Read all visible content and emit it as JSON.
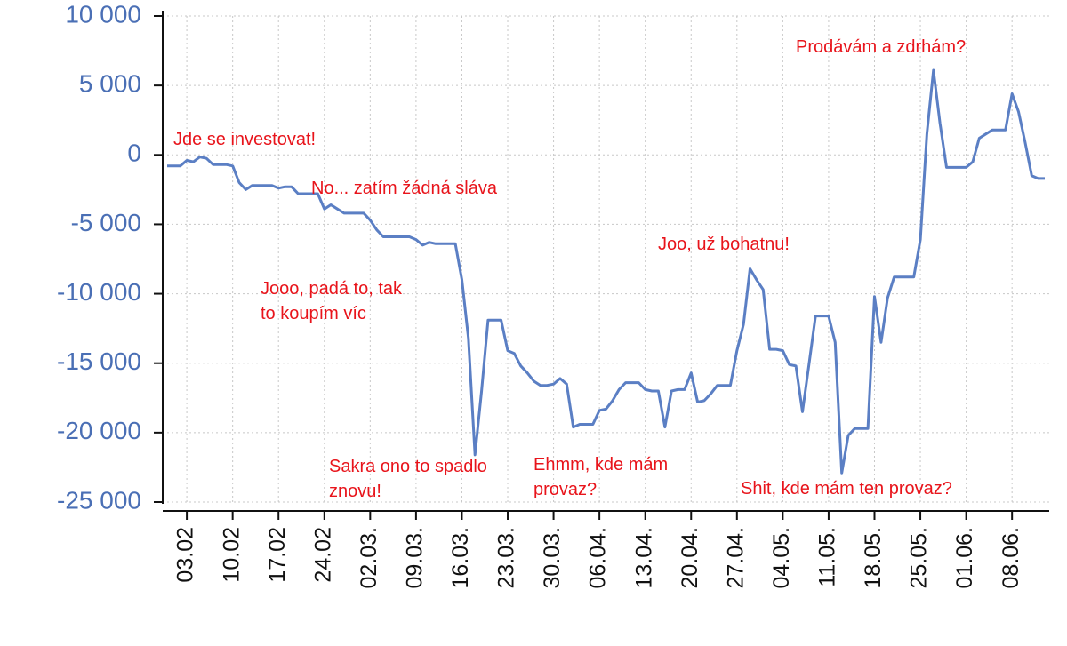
{
  "chart_data": {
    "type": "line",
    "x": [
      "31.01.",
      "01.02.",
      "02.02.",
      "03.02.",
      "04.02.",
      "05.02.",
      "06.02.",
      "07.02.",
      "08.02.",
      "09.02.",
      "10.02.",
      "11.02.",
      "12.02.",
      "13.02.",
      "14.02.",
      "15.02.",
      "16.02.",
      "17.02.",
      "18.02.",
      "19.02.",
      "20.02.",
      "21.02.",
      "22.02.",
      "23.02.",
      "24.02.",
      "25.02.",
      "26.02.",
      "27.02.",
      "28.02.",
      "29.02.",
      "01.03.",
      "02.03.",
      "03.03.",
      "04.03.",
      "05.03.",
      "06.03.",
      "07.03.",
      "08.03.",
      "09.03.",
      "10.03.",
      "11.03.",
      "12.03.",
      "13.03.",
      "14.03.",
      "15.03.",
      "16.03.",
      "17.03.",
      "18.03.",
      "19.03.",
      "20.03.",
      "21.03.",
      "22.03.",
      "23.03.",
      "24.03.",
      "25.03.",
      "26.03.",
      "27.03.",
      "28.03.",
      "29.03.",
      "30.03.",
      "31.03.",
      "01.04.",
      "02.04.",
      "03.04.",
      "04.04.",
      "05.04.",
      "06.04.",
      "07.04.",
      "08.04.",
      "09.04.",
      "10.04.",
      "11.04.",
      "12.04.",
      "13.04.",
      "14.04.",
      "15.04.",
      "16.04.",
      "17.04.",
      "18.04.",
      "19.04.",
      "20.04.",
      "21.04.",
      "22.04.",
      "23.04.",
      "24.04.",
      "25.04.",
      "26.04.",
      "27.04.",
      "28.04.",
      "29.04.",
      "30.04.",
      "01.05.",
      "02.05.",
      "03.05.",
      "04.05.",
      "05.05.",
      "06.05.",
      "07.05.",
      "08.05.",
      "09.05.",
      "10.05.",
      "11.05.",
      "12.05.",
      "13.05.",
      "14.05.",
      "15.05.",
      "16.05.",
      "17.05.",
      "18.05.",
      "19.05.",
      "20.05.",
      "21.05.",
      "22.05.",
      "23.05.",
      "24.05.",
      "25.05.",
      "26.05.",
      "27.05.",
      "28.05.",
      "29.05.",
      "30.05.",
      "31.05.",
      "01.06.",
      "02.06.",
      "03.06.",
      "04.06.",
      "05.06.",
      "06.06.",
      "07.06.",
      "08.06.",
      "09.06.",
      "10.06.",
      "11.06.",
      "12.06.",
      "13.06."
    ],
    "series": [
      {
        "color": "#5b7fc4",
        "values": [
          -800,
          -800,
          -800,
          -400,
          -500,
          -150,
          -250,
          -700,
          -700,
          -700,
          -800,
          -2000,
          -2500,
          -2200,
          -2200,
          -2200,
          -2200,
          -2400,
          -2300,
          -2300,
          -2800,
          -2800,
          -2800,
          -2800,
          -3900,
          -3600,
          -3900,
          -4200,
          -4200,
          -4200,
          -4200,
          -4700,
          -5400,
          -5900,
          -5900,
          -5900,
          -5900,
          -5900,
          -6100,
          -6500,
          -6300,
          -6400,
          -6400,
          -6400,
          -6400,
          -9000,
          -13200,
          -21600,
          -17000,
          -11900,
          -11900,
          -11900,
          -14100,
          -14300,
          -15200,
          -15700,
          -16300,
          -16600,
          -16600,
          -16500,
          -16100,
          -16500,
          -19600,
          -19400,
          -19400,
          -19400,
          -18400,
          -18300,
          -17700,
          -16900,
          -16400,
          -16400,
          -16400,
          -16900,
          -17000,
          -17000,
          -19600,
          -17000,
          -16900,
          -16900,
          -15700,
          -17800,
          -17700,
          -17200,
          -16600,
          -16600,
          -16600,
          -14100,
          -12200,
          -8200,
          -9000,
          -9700,
          -14000,
          -14000,
          -14100,
          -15100,
          -15200,
          -18500,
          -15100,
          -11600,
          -11600,
          -11600,
          -13500,
          -22900,
          -20200,
          -19700,
          -19700,
          -19700,
          -10200,
          -13500,
          -10300,
          -8800,
          -8800,
          -8800,
          -8800,
          -6100,
          1500,
          6100,
          2300,
          -900,
          -900,
          -900,
          -900,
          -500,
          1200,
          1500,
          1800,
          1800,
          1800,
          4400,
          3100,
          900,
          -1500,
          -1700,
          -1700
        ]
      }
    ],
    "xticks": [
      "03.02",
      "10.02",
      "17.02",
      "24.02",
      "02.03.",
      "09.03.",
      "16.03.",
      "23.03.",
      "30.03.",
      "06.04.",
      "13.04.",
      "20.04.",
      "27.04.",
      "04.05.",
      "11.05.",
      "18.05.",
      "25.05.",
      "01.06.",
      "08.06."
    ],
    "ylim": [
      -25000,
      10000
    ],
    "yticks": [
      {
        "value": -25000,
        "label": "-25 000"
      },
      {
        "value": -20000,
        "label": "-20 000"
      },
      {
        "value": -15000,
        "label": "-15 000"
      },
      {
        "value": -10000,
        "label": "-10 000"
      },
      {
        "value": -5000,
        "label": "-5 000"
      },
      0,
      {
        "value": 5000,
        "label": "5 000"
      },
      {
        "value": 10000,
        "label": "10 000"
      }
    ],
    "grid": true,
    "annotations": [
      [
        "Jde se investovat!"
      ],
      [
        "No... zatím žádná sláva"
      ],
      [
        "Jooo, padá to, tak",
        "to koupím víc"
      ],
      [
        "Sakra ono to spadlo",
        "znovu!"
      ],
      [
        "Ehmm, kde mám",
        "provaz?"
      ],
      [
        "Joo, už bohatnu!"
      ],
      [
        "Shit, kde mám ten provaz?"
      ],
      [
        "Prodávám a zdrhám?"
      ]
    ]
  }
}
